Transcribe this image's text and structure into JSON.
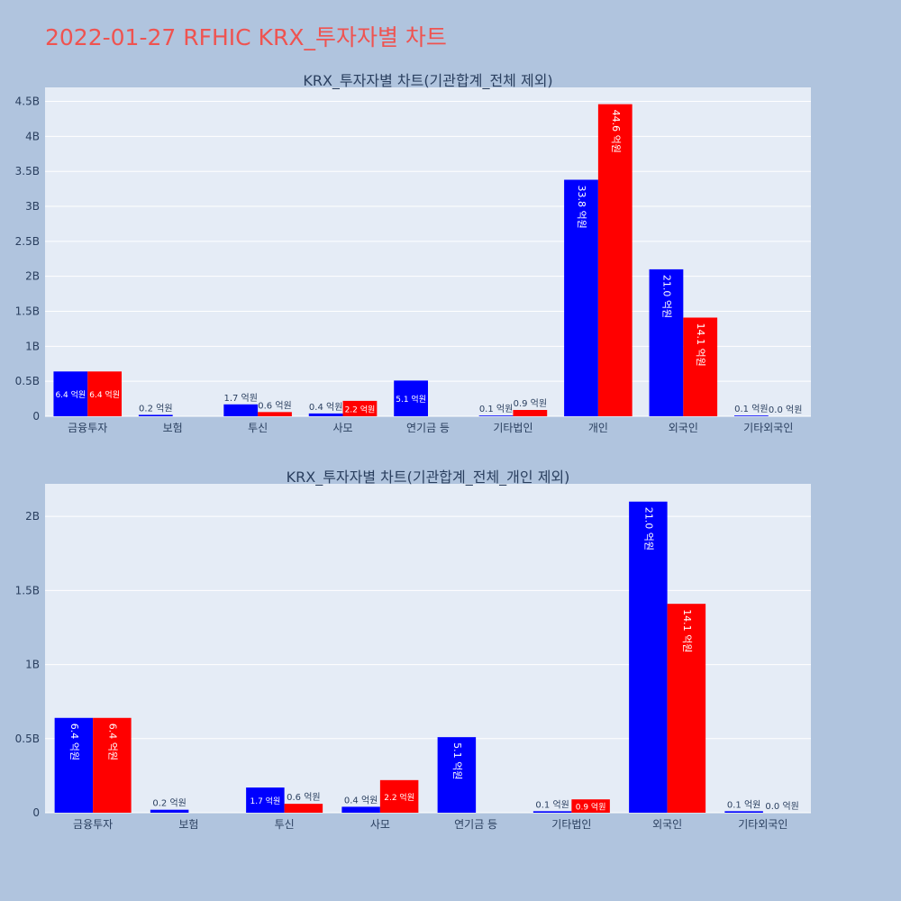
{
  "title": "2022-01-27 RFHIC KRX_투자자별 차트",
  "colors": {
    "buy": "#0000ff",
    "sell": "#ff0000",
    "plot_bg": "#e5ecf6",
    "page_bg": "#b0c4de"
  },
  "chart_data": [
    {
      "type": "bar",
      "title": "KRX_투자자별 차트(기관합계_전체 제외)",
      "categories": [
        "금융투자",
        "보험",
        "투신",
        "사모",
        "연기금 등",
        "기타법인",
        "개인",
        "외국인",
        "기타외국인"
      ],
      "series": [
        {
          "values": [
            0.64,
            0.02,
            0.17,
            0.04,
            0.51,
            0.01,
            3.38,
            2.1,
            0.01
          ],
          "labels": [
            "6.4 억원",
            "0.2 억원",
            "1.7 억원",
            "0.4 억원",
            "5.1 억원",
            "0.1 억원",
            "33.8 억원",
            "21.0 억원",
            "0.1 억원"
          ]
        },
        {
          "values": [
            0.64,
            0.0,
            0.06,
            0.22,
            0.0,
            0.09,
            4.46,
            1.41,
            0.0
          ],
          "labels": [
            "6.4 억원",
            "",
            "0.6 억원",
            "2.2 억원",
            "",
            "0.9 억원",
            "44.6 억원",
            "14.1 억원",
            "0.0 억원"
          ]
        }
      ],
      "yticks": [
        0,
        0.5,
        1,
        1.5,
        2,
        2.5,
        3,
        3.5,
        4,
        4.5
      ],
      "ytick_labels": [
        "0",
        "0.5B",
        "1B",
        "1.5B",
        "2B",
        "2.5B",
        "3B",
        "3.5B",
        "4B",
        "4.5B"
      ],
      "ylim": [
        0,
        4.7
      ],
      "grid": true
    },
    {
      "type": "bar",
      "title": "KRX_투자자별 차트(기관합계_전체_개인 제외)",
      "categories": [
        "금융투자",
        "보험",
        "투신",
        "사모",
        "연기금 등",
        "기타법인",
        "외국인",
        "기타외국인"
      ],
      "series": [
        {
          "values": [
            0.64,
            0.02,
            0.17,
            0.04,
            0.51,
            0.01,
            2.1,
            0.01
          ],
          "labels": [
            "6.4 억원",
            "0.2 억원",
            "1.7 억원",
            "0.4 억원",
            "5.1 억원",
            "0.1 억원",
            "21.0 억원",
            "0.1 억원"
          ]
        },
        {
          "values": [
            0.64,
            0.0,
            0.06,
            0.22,
            0.0,
            0.09,
            1.41,
            0.0
          ],
          "labels": [
            "6.4 억원",
            "",
            "0.6 억원",
            "2.2 억원",
            "",
            "0.9 억원",
            "14.1 억원",
            "0.0 억원"
          ]
        }
      ],
      "yticks": [
        0,
        0.5,
        1,
        1.5,
        2
      ],
      "ytick_labels": [
        "0",
        "0.5B",
        "1B",
        "1.5B",
        "2B"
      ],
      "ylim": [
        0,
        2.22
      ],
      "grid": true
    }
  ]
}
